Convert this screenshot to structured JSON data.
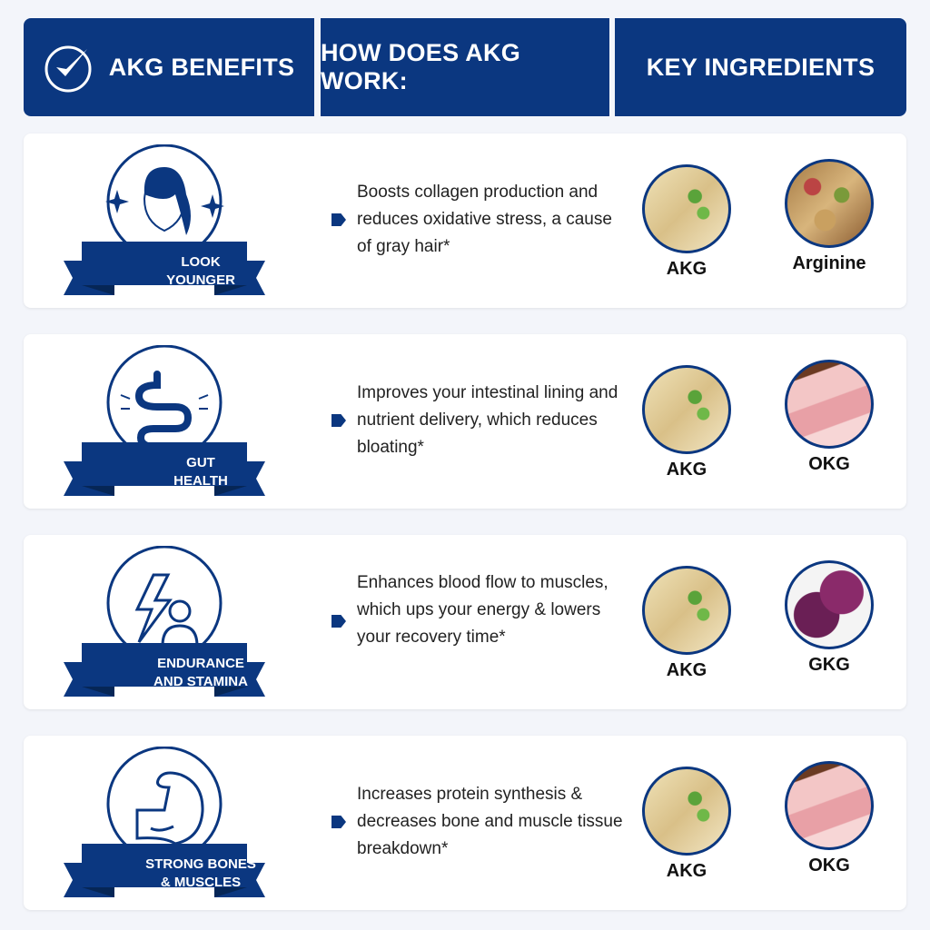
{
  "header": {
    "col1": "AKG BENEFITS",
    "col2": "HOW DOES AKG WORK:",
    "col3": "KEY INGREDIENTS",
    "check_icon": "check-circle-icon"
  },
  "brand_color": "#0b3780",
  "rows": [
    {
      "benefit_line1": "LOOK",
      "benefit_line2": "YOUNGER",
      "icon": "woman-face-icon",
      "desc": "Boosts collagen production and reduces oxidative stress, a cause of gray hair*",
      "ingredients": [
        {
          "label": "AKG"
        },
        {
          "label": "Arginine"
        }
      ]
    },
    {
      "benefit_line1": "GUT",
      "benefit_line2": "HEALTH",
      "icon": "intestine-icon",
      "desc": "Improves your intestinal lining and nutrient delivery, which reduces bloating*",
      "ingredients": [
        {
          "label": "AKG"
        },
        {
          "label": "OKG"
        }
      ]
    },
    {
      "benefit_line1": "ENDURANCE",
      "benefit_line2": "AND STAMINA",
      "icon": "lightning-person-icon",
      "desc": "Enhances blood flow to muscles, which ups your energy & lowers your recovery time*",
      "ingredients": [
        {
          "label": "AKG"
        },
        {
          "label": "GKG"
        }
      ]
    },
    {
      "benefit_line1": "STRONG BONES",
      "benefit_line2": "& MUSCLES",
      "icon": "flexed-arm-icon",
      "desc": "Increases protein synthesis & decreases bone and muscle tissue breakdown*",
      "ingredients": [
        {
          "label": "AKG"
        },
        {
          "label": "OKG"
        }
      ]
    }
  ]
}
